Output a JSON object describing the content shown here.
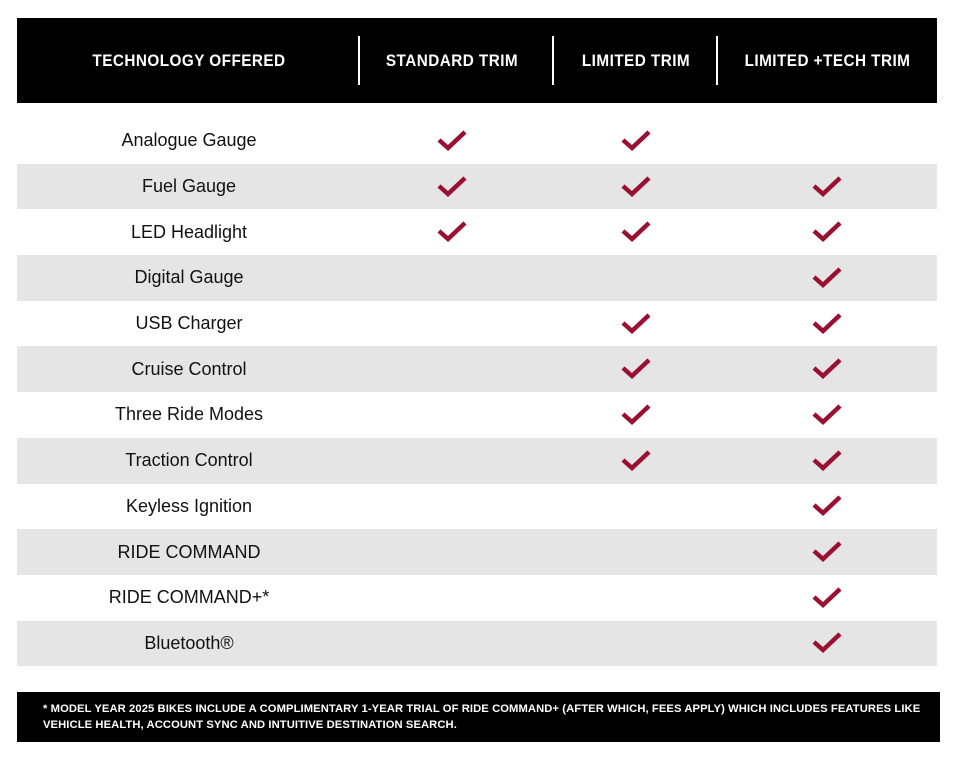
{
  "header": {
    "columns": [
      "TECHNOLOGY OFFERED",
      "STANDARD TRIM",
      "LIMITED TRIM",
      "LIMITED +TECH TRIM"
    ]
  },
  "colors": {
    "check": "#9a1030",
    "row_alt": "#e5e5e5",
    "header_bg": "#000000"
  },
  "icon": "checkmark-icon",
  "rows": [
    {
      "feature": "Analogue Gauge",
      "standard": true,
      "limited": true,
      "limited_tech": false
    },
    {
      "feature": "Fuel Gauge",
      "standard": true,
      "limited": true,
      "limited_tech": true
    },
    {
      "feature": "LED Headlight",
      "standard": true,
      "limited": true,
      "limited_tech": true
    },
    {
      "feature": "Digital Gauge",
      "standard": false,
      "limited": false,
      "limited_tech": true
    },
    {
      "feature": "USB Charger",
      "standard": false,
      "limited": true,
      "limited_tech": true
    },
    {
      "feature": "Cruise Control",
      "standard": false,
      "limited": true,
      "limited_tech": true
    },
    {
      "feature": "Three Ride Modes",
      "standard": false,
      "limited": true,
      "limited_tech": true
    },
    {
      "feature": "Traction Control",
      "standard": false,
      "limited": true,
      "limited_tech": true
    },
    {
      "feature": "Keyless Ignition",
      "standard": false,
      "limited": false,
      "limited_tech": true
    },
    {
      "feature": "RIDE COMMAND",
      "standard": false,
      "limited": false,
      "limited_tech": true
    },
    {
      "feature": "RIDE COMMAND+*",
      "standard": false,
      "limited": false,
      "limited_tech": true
    },
    {
      "feature": "Bluetooth®",
      "standard": false,
      "limited": false,
      "limited_tech": true
    }
  ],
  "footnote": "* MODEL YEAR 2025 BIKES INCLUDE A COMPLIMENTARY 1-YEAR TRIAL OF RIDE COMMAND+ (AFTER WHICH, FEES APPLY) WHICH INCLUDES FEATURES LIKE VEHICLE HEALTH, ACCOUNT SYNC AND INTUITIVE DESTINATION SEARCH."
}
